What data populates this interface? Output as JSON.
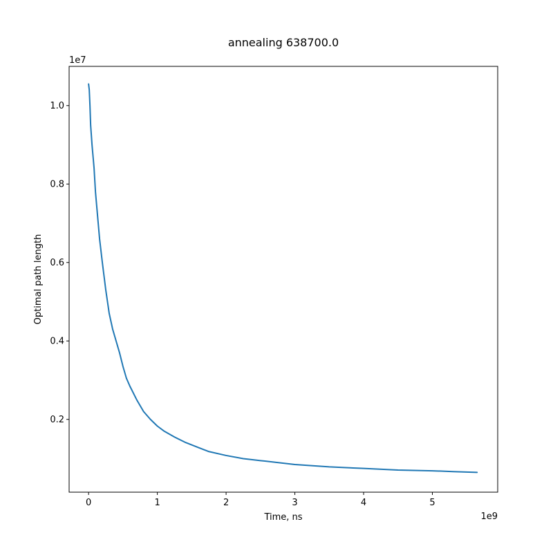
{
  "chart_data": {
    "type": "line",
    "title": "annealing 638700.0",
    "xlabel": "Time, ns",
    "ylabel": "Optimal path length",
    "x_offset_label": "1e9",
    "y_offset_label": "1e7",
    "xlim": [
      -0.283,
      5.95
    ],
    "ylim": [
      0.0145,
      1.1
    ],
    "x_ticks": [
      0,
      1,
      2,
      3,
      4,
      5
    ],
    "x_tick_labels": [
      "0",
      "1",
      "2",
      "3",
      "4",
      "5"
    ],
    "y_ticks": [
      0.2,
      0.4,
      0.6,
      0.8,
      1.0
    ],
    "y_tick_labels": [
      "0.2",
      "0.4",
      "0.6",
      "0.8",
      "1.0"
    ],
    "grid": false,
    "legend": "none",
    "series": [
      {
        "color": "#1f77b4",
        "x": [
          0.0,
          0.01,
          0.02,
          0.03,
          0.05,
          0.08,
          0.1,
          0.13,
          0.16,
          0.2,
          0.25,
          0.3,
          0.35,
          0.4,
          0.45,
          0.5,
          0.55,
          0.6,
          0.7,
          0.8,
          0.9,
          1.0,
          1.1,
          1.25,
          1.4,
          1.6,
          1.75,
          2.0,
          2.25,
          2.5,
          3.0,
          3.5,
          4.0,
          4.5,
          5.0,
          5.3,
          5.65
        ],
        "y": [
          1.055,
          1.04,
          1.0,
          0.95,
          0.9,
          0.84,
          0.78,
          0.72,
          0.66,
          0.6,
          0.53,
          0.47,
          0.43,
          0.4,
          0.37,
          0.335,
          0.305,
          0.285,
          0.25,
          0.22,
          0.2,
          0.183,
          0.17,
          0.155,
          0.142,
          0.128,
          0.118,
          0.108,
          0.1,
          0.095,
          0.085,
          0.079,
          0.075,
          0.071,
          0.069,
          0.067,
          0.065
        ]
      }
    ]
  }
}
